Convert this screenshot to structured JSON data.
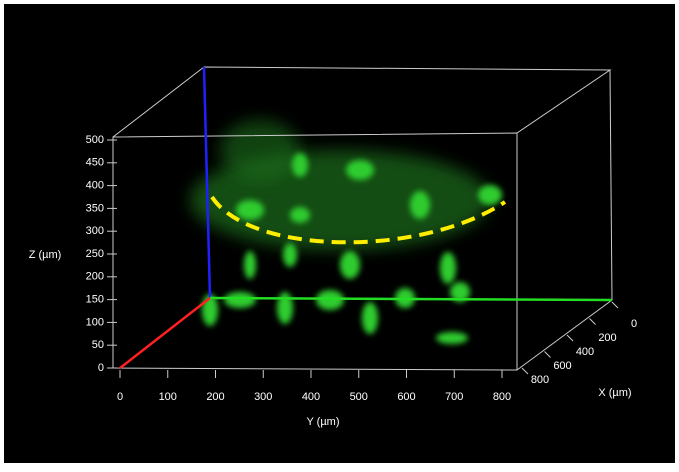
{
  "z_axis": {
    "label": "Z (µm)",
    "ticks": [
      0,
      50,
      100,
      150,
      200,
      250,
      300,
      350,
      400,
      450,
      500
    ]
  },
  "y_axis": {
    "label": "Y (µm)",
    "ticks": [
      0,
      100,
      200,
      300,
      400,
      500,
      600,
      700,
      800
    ]
  },
  "x_axis": {
    "label": "X (µm)",
    "ticks": [
      0,
      200,
      400,
      600,
      800
    ]
  }
}
